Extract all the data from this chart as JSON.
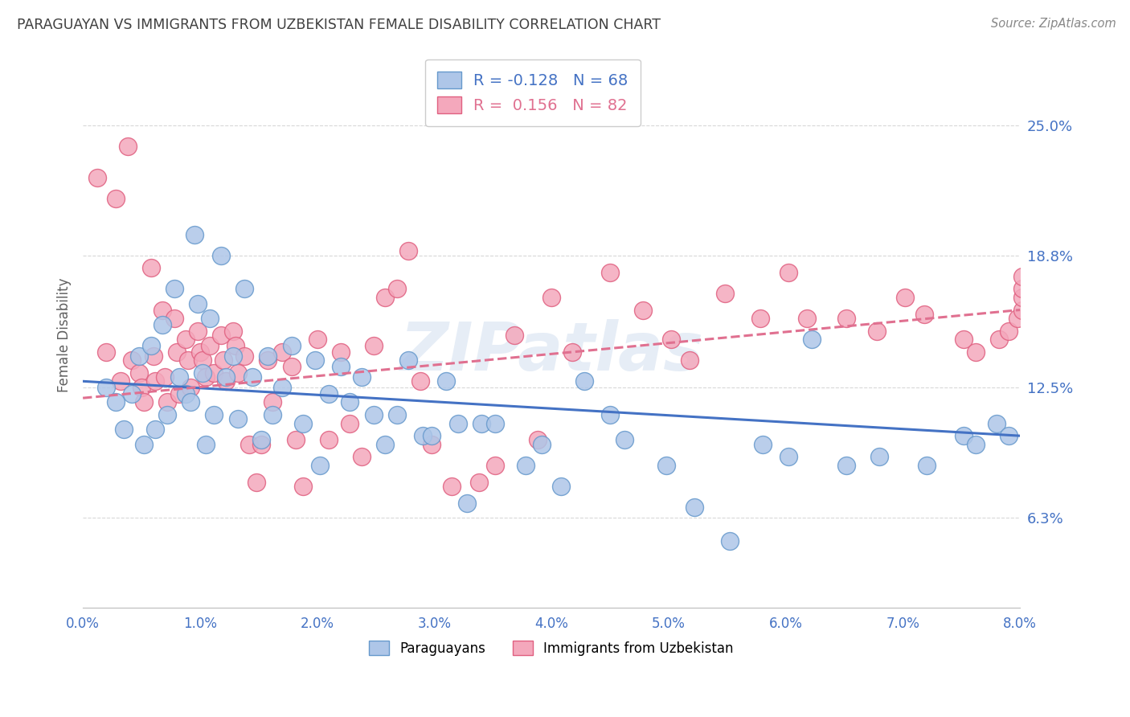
{
  "title": "PARAGUAYAN VS IMMIGRANTS FROM UZBEKISTAN FEMALE DISABILITY CORRELATION CHART",
  "source": "Source: ZipAtlas.com",
  "ylabel": "Female Disability",
  "yticks": [
    6.3,
    12.5,
    18.8,
    25.0
  ],
  "ytick_labels": [
    "6.3%",
    "12.5%",
    "18.8%",
    "25.0%"
  ],
  "xlim": [
    0.0,
    8.0
  ],
  "ylim": [
    2.0,
    28.0
  ],
  "blue_label": "Paraguayans",
  "pink_label": "Immigrants from Uzbekistan",
  "blue_R": "-0.128",
  "blue_N": "68",
  "pink_R": " 0.156",
  "pink_N": "82",
  "blue_color": "#aec6e8",
  "pink_color": "#f4a8bc",
  "blue_edge": "#6699cc",
  "pink_edge": "#e06080",
  "blue_trend_color": "#4472c4",
  "pink_trend_color": "#e07090",
  "background_color": "#ffffff",
  "grid_color": "#d8d8d8",
  "title_color": "#404040",
  "axis_label_color": "#4472c4",
  "watermark": "ZIPatlas",
  "blue_x": [
    0.2,
    0.28,
    0.35,
    0.42,
    0.48,
    0.52,
    0.58,
    0.62,
    0.68,
    0.72,
    0.78,
    0.82,
    0.88,
    0.92,
    0.95,
    0.98,
    1.02,
    1.05,
    1.08,
    1.12,
    1.18,
    1.22,
    1.28,
    1.32,
    1.38,
    1.45,
    1.52,
    1.58,
    1.62,
    1.7,
    1.78,
    1.88,
    1.98,
    2.02,
    2.1,
    2.2,
    2.28,
    2.38,
    2.48,
    2.58,
    2.68,
    2.78,
    2.9,
    2.98,
    3.1,
    3.2,
    3.28,
    3.4,
    3.52,
    3.78,
    3.92,
    4.08,
    4.28,
    4.5,
    4.62,
    4.98,
    5.22,
    5.52,
    5.8,
    6.02,
    6.22,
    6.52,
    6.8,
    7.2,
    7.52,
    7.62,
    7.8,
    7.9
  ],
  "blue_y": [
    12.5,
    11.8,
    10.5,
    12.2,
    14.0,
    9.8,
    14.5,
    10.5,
    15.5,
    11.2,
    17.2,
    13.0,
    12.2,
    11.8,
    19.8,
    16.5,
    13.2,
    9.8,
    15.8,
    11.2,
    18.8,
    13.0,
    14.0,
    11.0,
    17.2,
    13.0,
    10.0,
    14.0,
    11.2,
    12.5,
    14.5,
    10.8,
    13.8,
    8.8,
    12.2,
    13.5,
    11.8,
    13.0,
    11.2,
    9.8,
    11.2,
    13.8,
    10.2,
    10.2,
    12.8,
    10.8,
    7.0,
    10.8,
    10.8,
    8.8,
    9.8,
    7.8,
    12.8,
    11.2,
    10.0,
    8.8,
    6.8,
    5.2,
    9.8,
    9.2,
    14.8,
    8.8,
    9.2,
    8.8,
    10.2,
    9.8,
    10.8,
    10.2
  ],
  "pink_x": [
    0.12,
    0.2,
    0.28,
    0.32,
    0.38,
    0.42,
    0.48,
    0.5,
    0.52,
    0.58,
    0.6,
    0.62,
    0.68,
    0.7,
    0.72,
    0.78,
    0.8,
    0.82,
    0.88,
    0.9,
    0.92,
    0.98,
    1.0,
    1.02,
    1.05,
    1.08,
    1.12,
    1.18,
    1.2,
    1.22,
    1.28,
    1.3,
    1.32,
    1.38,
    1.42,
    1.48,
    1.52,
    1.58,
    1.62,
    1.7,
    1.78,
    1.82,
    1.88,
    2.0,
    2.1,
    2.2,
    2.28,
    2.38,
    2.48,
    2.58,
    2.68,
    2.78,
    2.88,
    2.98,
    3.15,
    3.38,
    3.52,
    3.68,
    3.88,
    4.0,
    4.18,
    4.5,
    4.78,
    5.02,
    5.18,
    5.48,
    5.78,
    6.02,
    6.18,
    6.52,
    6.78,
    7.02,
    7.18,
    7.52,
    7.62,
    7.82,
    7.9,
    7.98,
    8.02,
    8.02,
    8.02,
    8.02
  ],
  "pink_y": [
    22.5,
    14.2,
    21.5,
    12.8,
    24.0,
    13.8,
    13.2,
    12.5,
    11.8,
    18.2,
    14.0,
    12.8,
    16.2,
    13.0,
    11.8,
    15.8,
    14.2,
    12.2,
    14.8,
    13.8,
    12.5,
    15.2,
    14.2,
    13.8,
    13.0,
    14.5,
    13.2,
    15.0,
    13.8,
    12.8,
    15.2,
    14.5,
    13.2,
    14.0,
    9.8,
    8.0,
    9.8,
    13.8,
    11.8,
    14.2,
    13.5,
    10.0,
    7.8,
    14.8,
    10.0,
    14.2,
    10.8,
    9.2,
    14.5,
    16.8,
    17.2,
    19.0,
    12.8,
    9.8,
    7.8,
    8.0,
    8.8,
    15.0,
    10.0,
    16.8,
    14.2,
    18.0,
    16.2,
    14.8,
    13.8,
    17.0,
    15.8,
    18.0,
    15.8,
    15.8,
    15.2,
    16.8,
    16.0,
    14.8,
    14.2,
    14.8,
    15.2,
    15.8,
    16.2,
    16.8,
    17.2,
    17.8
  ]
}
